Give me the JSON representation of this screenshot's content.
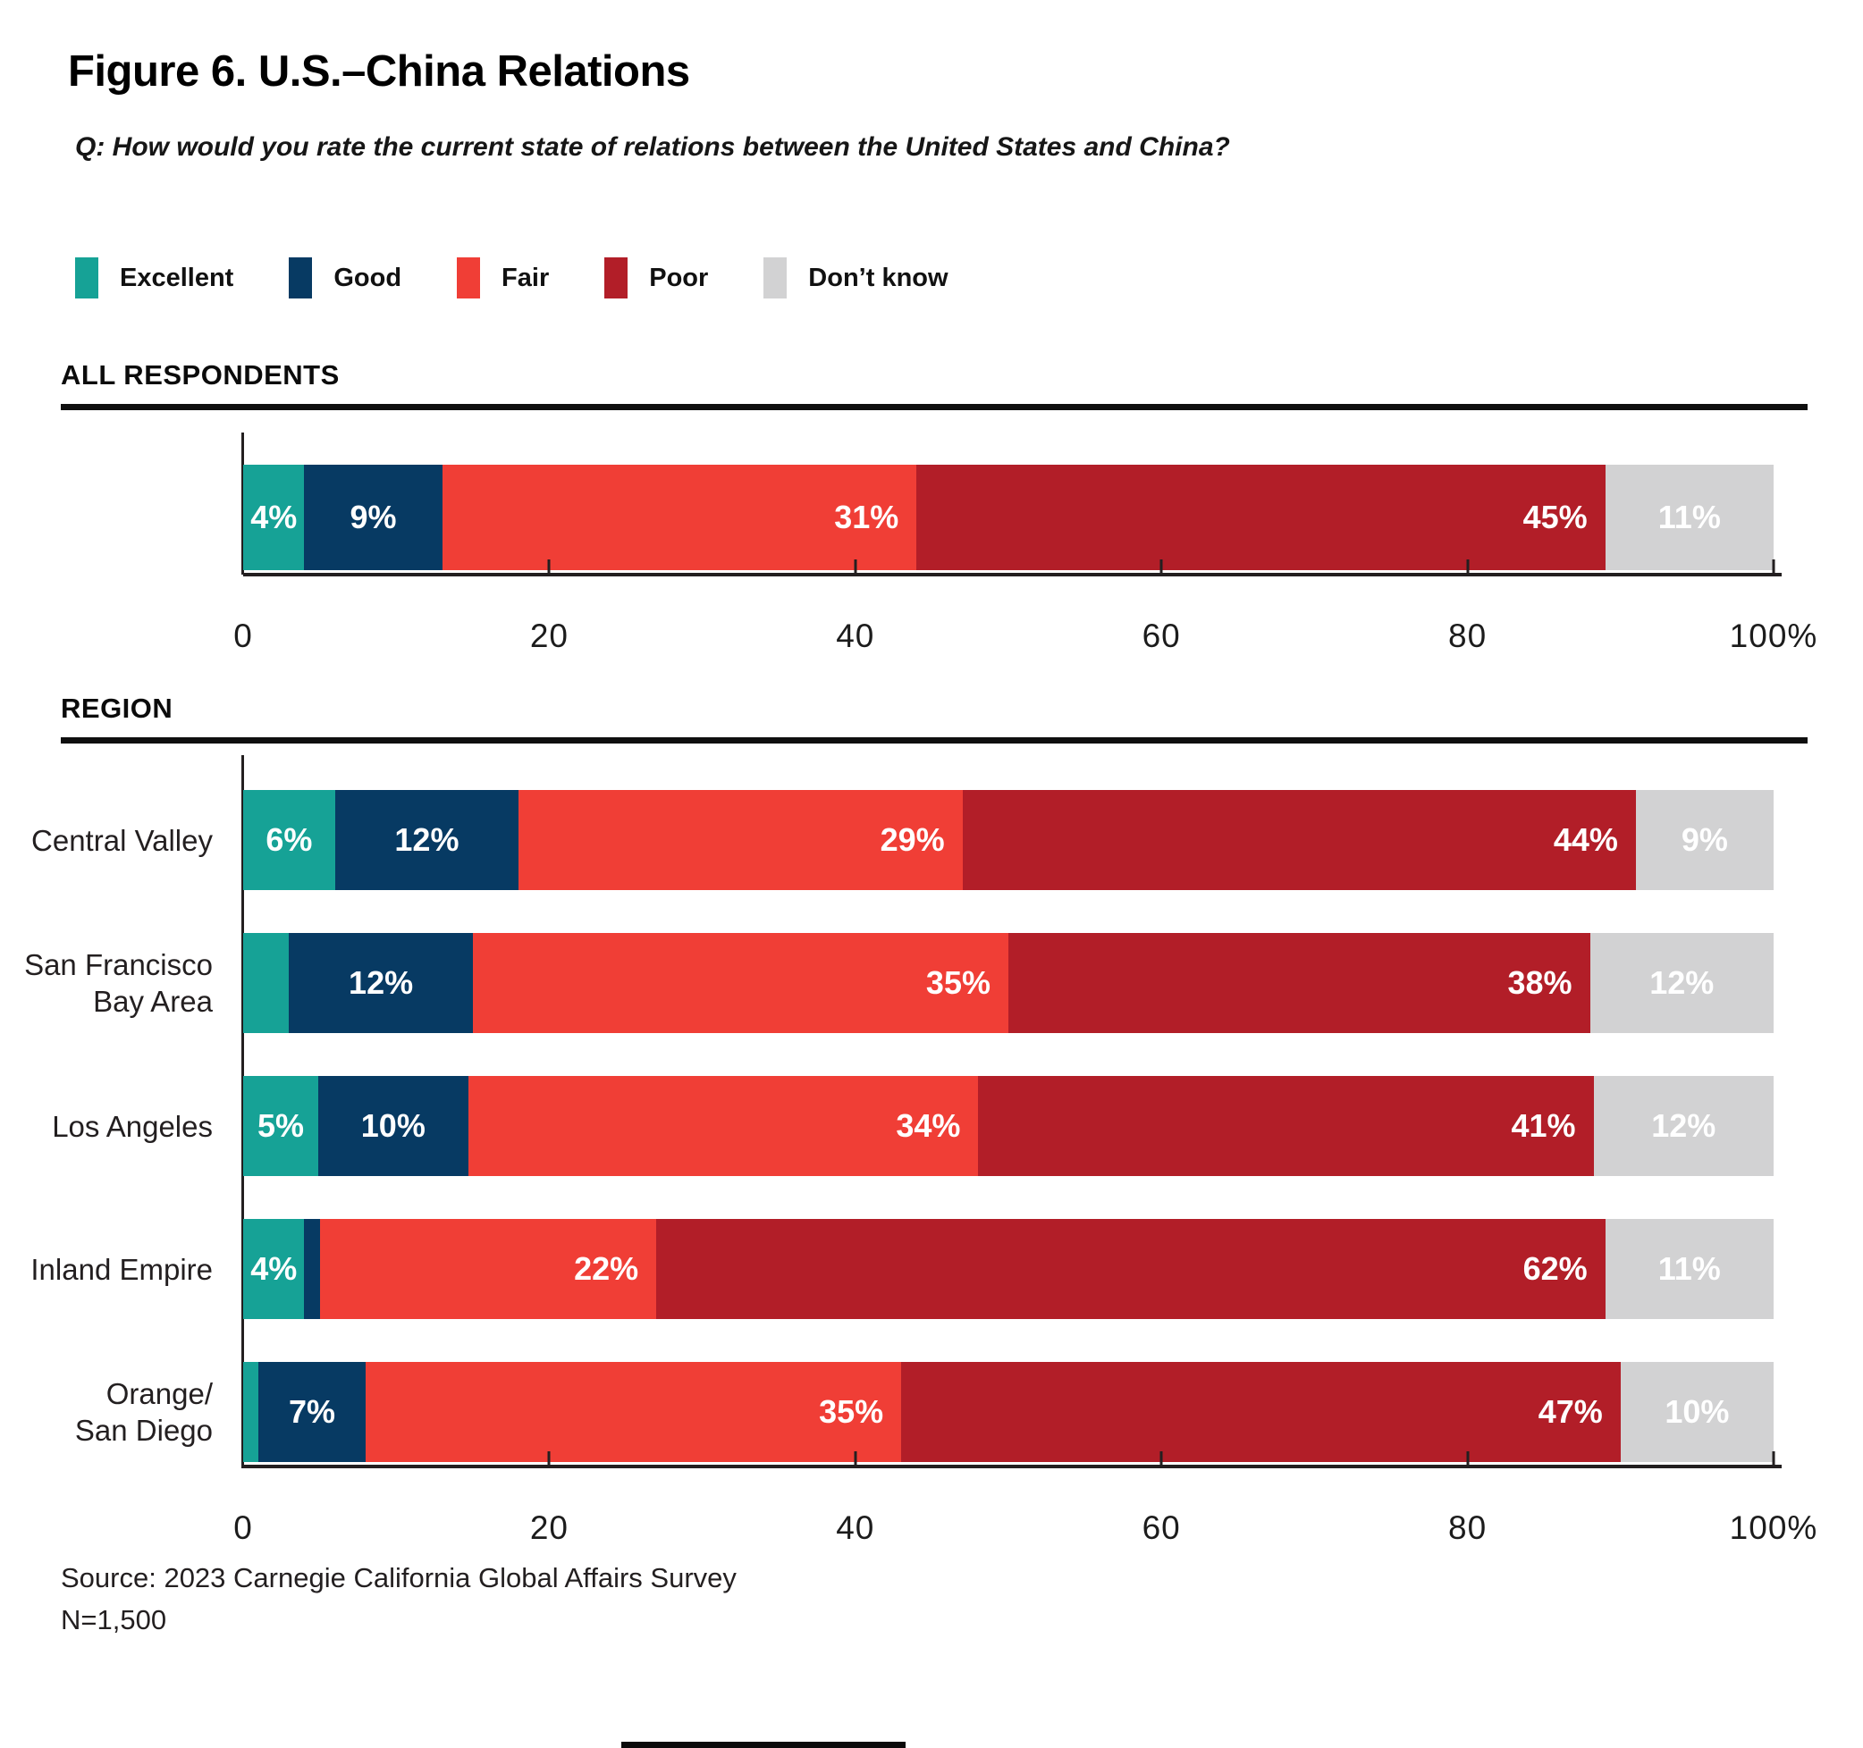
{
  "title": "Figure 6. U.S.–China Relations",
  "question": "Q: How would you rate the current state of relations between the United States and China?",
  "legend": [
    {
      "key": "excellent",
      "label": "Excellent",
      "color": "#16A296"
    },
    {
      "key": "good",
      "label": "Good",
      "color": "#073A63"
    },
    {
      "key": "fair",
      "label": "Fair",
      "color": "#F03E36"
    },
    {
      "key": "poor",
      "label": "Poor",
      "color": "#B21E28"
    },
    {
      "key": "dont-know",
      "label": "Don’t know",
      "color": "#D2D2D3"
    }
  ],
  "sections": {
    "all": {
      "label": "ALL RESPONDENTS"
    },
    "region": {
      "label": "REGION"
    }
  },
  "axis": {
    "ticks": [
      {
        "v": 0,
        "label": "0"
      },
      {
        "v": 20,
        "label": "20"
      },
      {
        "v": 40,
        "label": "40"
      },
      {
        "v": 60,
        "label": "60"
      },
      {
        "v": 80,
        "label": "80"
      },
      {
        "v": 100,
        "label": "100%"
      }
    ]
  },
  "chart_data": [
    {
      "id": "all",
      "type": "bar",
      "stacked": true,
      "orientation": "horizontal",
      "section": "ALL RESPONDENTS",
      "show_category_labels": false,
      "categories": [
        "All respondents"
      ],
      "series": [
        {
          "name": "Excellent",
          "values": [
            4
          ],
          "labels": [
            "4%"
          ]
        },
        {
          "name": "Good",
          "values": [
            9
          ],
          "labels": [
            "9%"
          ]
        },
        {
          "name": "Fair",
          "values": [
            31
          ],
          "labels": [
            "31%"
          ]
        },
        {
          "name": "Poor",
          "values": [
            45
          ],
          "labels": [
            "45%"
          ]
        },
        {
          "name": "Don’t know",
          "values": [
            11
          ],
          "labels": [
            "11%"
          ]
        }
      ],
      "xlim": [
        0,
        100
      ],
      "tick_labels": [
        "0",
        "20",
        "40",
        "60",
        "80",
        "100%"
      ]
    },
    {
      "id": "region",
      "type": "bar",
      "stacked": true,
      "orientation": "horizontal",
      "section": "REGION",
      "show_category_labels": true,
      "categories": [
        "Central Valley",
        "San Francisco\nBay Area",
        "Los Angeles",
        "Inland Empire",
        "Orange/\nSan Diego"
      ],
      "series": [
        {
          "name": "Excellent",
          "values": [
            6,
            3,
            5,
            4,
            1
          ],
          "labels": [
            "6%",
            "",
            "5%",
            "4%",
            ""
          ]
        },
        {
          "name": "Good",
          "values": [
            12,
            12,
            10,
            1,
            7
          ],
          "labels": [
            "12%",
            "12%",
            "10%",
            "",
            "7%"
          ]
        },
        {
          "name": "Fair",
          "values": [
            29,
            35,
            34,
            22,
            35
          ],
          "labels": [
            "29%",
            "35%",
            "34%",
            "22%",
            "35%"
          ]
        },
        {
          "name": "Poor",
          "values": [
            44,
            38,
            41,
            62,
            47
          ],
          "labels": [
            "44%",
            "38%",
            "41%",
            "62%",
            "47%"
          ]
        },
        {
          "name": "Don’t know",
          "values": [
            9,
            12,
            12,
            11,
            10
          ],
          "labels": [
            "9%",
            "12%",
            "12%",
            "11%",
            "10%"
          ]
        }
      ],
      "xlim": [
        0,
        100
      ],
      "tick_labels": [
        "0",
        "20",
        "40",
        "60",
        "80",
        "100%"
      ]
    }
  ],
  "source": "Source: 2023 Carnegie California Global Affairs Survey",
  "n": "N=1,500"
}
